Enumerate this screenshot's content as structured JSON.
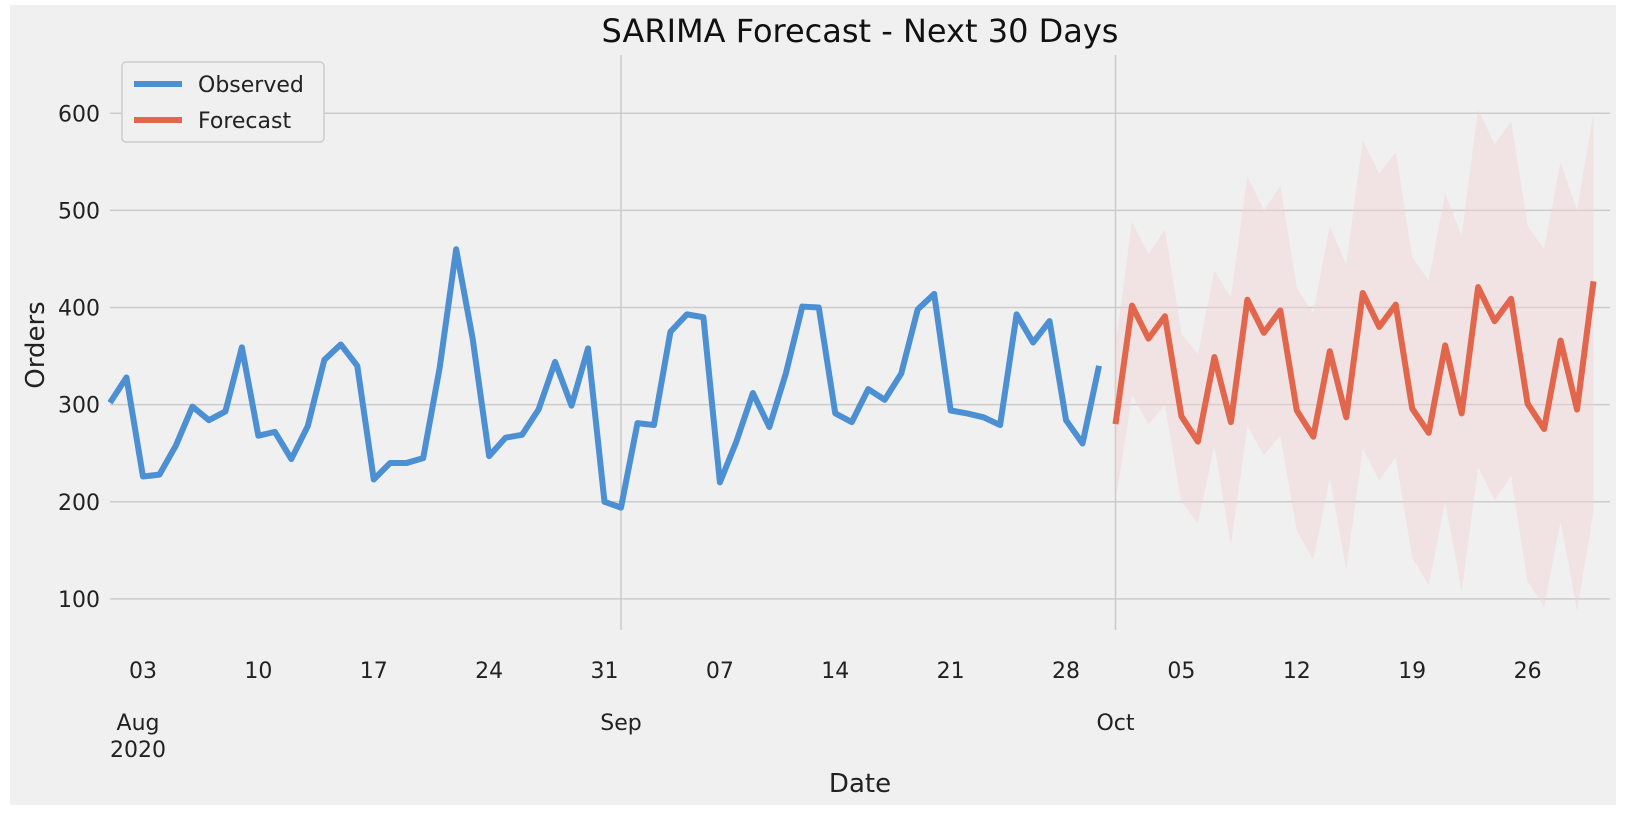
{
  "chart_data": {
    "type": "line",
    "title": "SARIMA Forecast - Next 30 Days",
    "xlabel": "Date",
    "ylabel": "Orders",
    "ylim": [
      68,
      660
    ],
    "xlim": [
      "2020-08-01",
      "2020-10-31"
    ],
    "grid": true,
    "legend_position": "top-left",
    "y_ticks": [
      100,
      200,
      300,
      400,
      500,
      600
    ],
    "x_ticks": [
      {
        "date": "2020-08-03",
        "label": "03"
      },
      {
        "date": "2020-08-10",
        "label": "10"
      },
      {
        "date": "2020-08-17",
        "label": "17"
      },
      {
        "date": "2020-08-24",
        "label": "24"
      },
      {
        "date": "2020-08-31",
        "label": "31"
      },
      {
        "date": "2020-09-07",
        "label": "07"
      },
      {
        "date": "2020-09-14",
        "label": "14"
      },
      {
        "date": "2020-09-21",
        "label": "21"
      },
      {
        "date": "2020-09-28",
        "label": "28"
      },
      {
        "date": "2020-10-05",
        "label": "05"
      },
      {
        "date": "2020-10-12",
        "label": "12"
      },
      {
        "date": "2020-10-19",
        "label": "19"
      },
      {
        "date": "2020-10-26",
        "label": "26"
      }
    ],
    "month_ticks": [
      {
        "date": "2020-08-01",
        "label": "Aug",
        "year": "2020"
      },
      {
        "date": "2020-09-01",
        "label": "Sep",
        "year": ""
      },
      {
        "date": "2020-10-01",
        "label": "Oct",
        "year": ""
      }
    ],
    "series": [
      {
        "name": "Observed",
        "color": "#4c8fd3",
        "start_date": "2020-08-01",
        "values": [
          302,
          328,
          226,
          228,
          258,
          298,
          284,
          293,
          359,
          268,
          272,
          244,
          278,
          346,
          362,
          340,
          223,
          240,
          240,
          245,
          338,
          460,
          368,
          247,
          266,
          269,
          295,
          344,
          299,
          358,
          200,
          194,
          281,
          279,
          375,
          393,
          390,
          220,
          262,
          312,
          277,
          332,
          401,
          400,
          291,
          282,
          316,
          305,
          332,
          398,
          414,
          294,
          291,
          287,
          279,
          393,
          364,
          386,
          284,
          260,
          340
        ]
      },
      {
        "name": "Forecast",
        "color": "#e2664b",
        "start_date": "2020-10-01",
        "values": [
          280,
          402,
          368,
          391,
          288,
          262,
          349,
          282,
          408,
          374,
          397,
          294,
          267,
          355,
          287,
          415,
          380,
          403,
          296,
          271,
          361,
          291,
          421,
          386,
          409,
          301,
          275,
          366,
          295,
          427
        ],
        "lower": [
          200,
          310,
          280,
          300,
          200,
          178,
          258,
          155,
          278,
          248,
          268,
          170,
          140,
          225,
          130,
          255,
          222,
          246,
          143,
          114,
          200,
          108,
          235,
          202,
          226,
          118,
          92,
          180,
          88,
          190
        ],
        "upper": [
          360,
          488,
          455,
          480,
          373,
          352,
          438,
          410,
          535,
          500,
          525,
          420,
          394,
          484,
          444,
          572,
          538,
          560,
          452,
          428,
          518,
          474,
          604,
          568,
          592,
          484,
          460,
          550,
          500,
          600
        ]
      }
    ],
    "band_color": "#f2d0d3"
  }
}
